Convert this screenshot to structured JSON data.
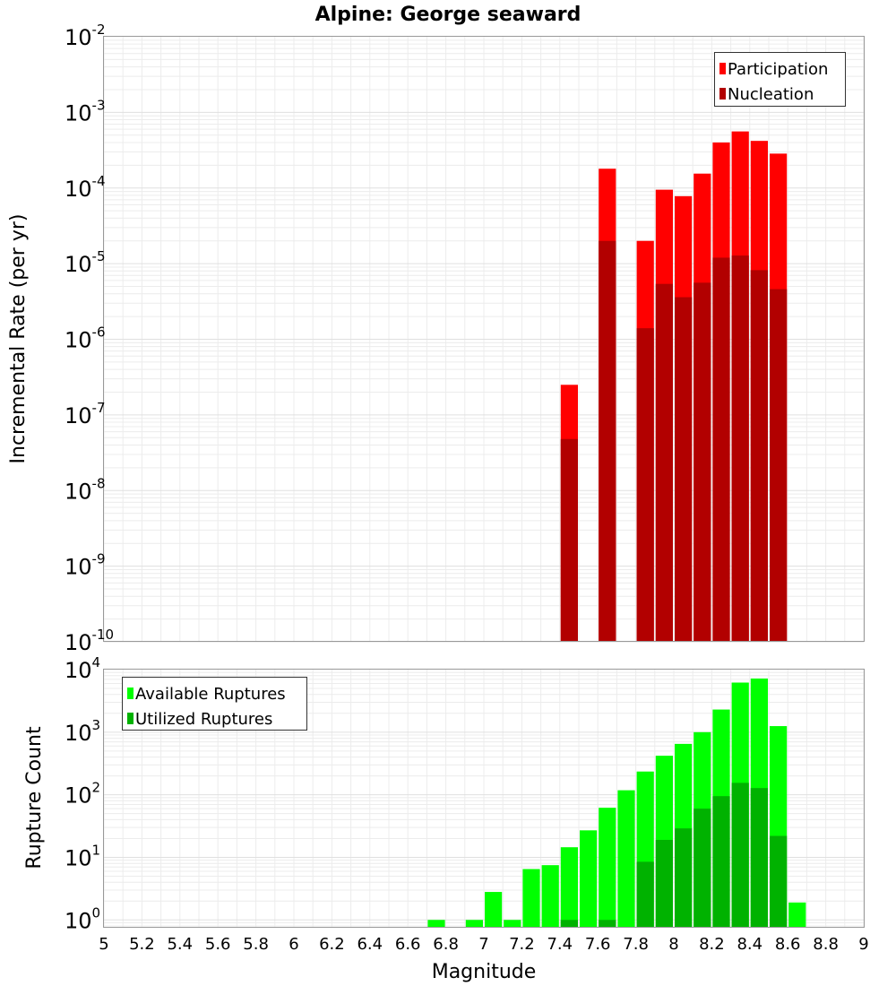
{
  "chart_data": [
    {
      "type": "bar",
      "title": "Alpine: George seaward",
      "ylabel": "Incremental Rate (per yr)",
      "yscale": "log",
      "ylim": [
        1e-10,
        0.01
      ],
      "xlim": [
        5,
        9
      ],
      "bin_width": 0.1,
      "grid": true,
      "legend_position": "top-right",
      "series": [
        {
          "name": "Participation",
          "color": "#ff0000",
          "points": [
            {
              "x": 7.45,
              "y": 2.5e-07
            },
            {
              "x": 7.65,
              "y": 0.00018
            },
            {
              "x": 7.85,
              "y": 2e-05
            },
            {
              "x": 7.95,
              "y": 9.5e-05
            },
            {
              "x": 8.05,
              "y": 7.8e-05
            },
            {
              "x": 8.15,
              "y": 0.000155
            },
            {
              "x": 8.25,
              "y": 0.0004
            },
            {
              "x": 8.35,
              "y": 0.00056
            },
            {
              "x": 8.45,
              "y": 0.00042
            },
            {
              "x": 8.55,
              "y": 0.000285
            }
          ]
        },
        {
          "name": "Nucleation",
          "color": "#b20000",
          "points": [
            {
              "x": 7.45,
              "y": 4.8e-08
            },
            {
              "x": 7.65,
              "y": 2e-05
            },
            {
              "x": 7.85,
              "y": 1.4e-06
            },
            {
              "x": 7.95,
              "y": 5.4e-06
            },
            {
              "x": 8.05,
              "y": 3.6e-06
            },
            {
              "x": 8.15,
              "y": 5.6e-06
            },
            {
              "x": 8.25,
              "y": 1.2e-05
            },
            {
              "x": 8.35,
              "y": 1.28e-05
            },
            {
              "x": 8.45,
              "y": 8.2e-06
            },
            {
              "x": 8.55,
              "y": 4.6e-06
            }
          ]
        }
      ],
      "y_ticks": [
        {
          "base": "10",
          "exp": "-2"
        },
        {
          "base": "10",
          "exp": "-3"
        },
        {
          "base": "10",
          "exp": "-4"
        },
        {
          "base": "10",
          "exp": "-5"
        },
        {
          "base": "10",
          "exp": "-6"
        },
        {
          "base": "10",
          "exp": "-7"
        },
        {
          "base": "10",
          "exp": "-8"
        },
        {
          "base": "10",
          "exp": "-9"
        },
        {
          "base": "10",
          "exp": "-10"
        }
      ]
    },
    {
      "type": "bar",
      "xlabel": "Magnitude",
      "ylabel": "Rupture Count",
      "yscale": "log",
      "ylim": [
        0.75,
        10000
      ],
      "xlim": [
        5,
        9
      ],
      "bin_width": 0.1,
      "grid": true,
      "legend_position": "top-left",
      "series": [
        {
          "name": "Available Ruptures",
          "color": "#00ff00",
          "points": [
            {
              "x": 6.75,
              "y": 1
            },
            {
              "x": 6.95,
              "y": 1
            },
            {
              "x": 7.05,
              "y": 2.8
            },
            {
              "x": 7.15,
              "y": 1
            },
            {
              "x": 7.25,
              "y": 6.5
            },
            {
              "x": 7.35,
              "y": 7.5
            },
            {
              "x": 7.45,
              "y": 14.5
            },
            {
              "x": 7.55,
              "y": 27
            },
            {
              "x": 7.65,
              "y": 62
            },
            {
              "x": 7.75,
              "y": 118
            },
            {
              "x": 7.85,
              "y": 235
            },
            {
              "x": 7.95,
              "y": 420
            },
            {
              "x": 8.05,
              "y": 650
            },
            {
              "x": 8.15,
              "y": 1000
            },
            {
              "x": 8.25,
              "y": 2300
            },
            {
              "x": 8.35,
              "y": 6200
            },
            {
              "x": 8.45,
              "y": 7200
            },
            {
              "x": 8.55,
              "y": 1250
            },
            {
              "x": 8.65,
              "y": 1.9
            }
          ]
        },
        {
          "name": "Utilized Ruptures",
          "color": "#00b200",
          "points": [
            {
              "x": 7.45,
              "y": 1
            },
            {
              "x": 7.65,
              "y": 1
            },
            {
              "x": 7.85,
              "y": 8.5
            },
            {
              "x": 7.95,
              "y": 19
            },
            {
              "x": 8.05,
              "y": 29
            },
            {
              "x": 8.15,
              "y": 60
            },
            {
              "x": 8.25,
              "y": 95
            },
            {
              "x": 8.35,
              "y": 155
            },
            {
              "x": 8.45,
              "y": 128
            },
            {
              "x": 8.55,
              "y": 22
            }
          ]
        }
      ],
      "y_ticks": [
        {
          "base": "10",
          "exp": "4"
        },
        {
          "base": "10",
          "exp": "3"
        },
        {
          "base": "10",
          "exp": "2"
        },
        {
          "base": "10",
          "exp": "1"
        },
        {
          "base": "10",
          "exp": "0"
        }
      ],
      "x_ticks": [
        "5",
        "5.2",
        "5.4",
        "5.6",
        "5.8",
        "6",
        "6.2",
        "6.4",
        "6.6",
        "6.8",
        "7",
        "7.2",
        "7.4",
        "7.6",
        "7.8",
        "8",
        "8.2",
        "8.4",
        "8.6",
        "8.8",
        "9"
      ]
    }
  ]
}
